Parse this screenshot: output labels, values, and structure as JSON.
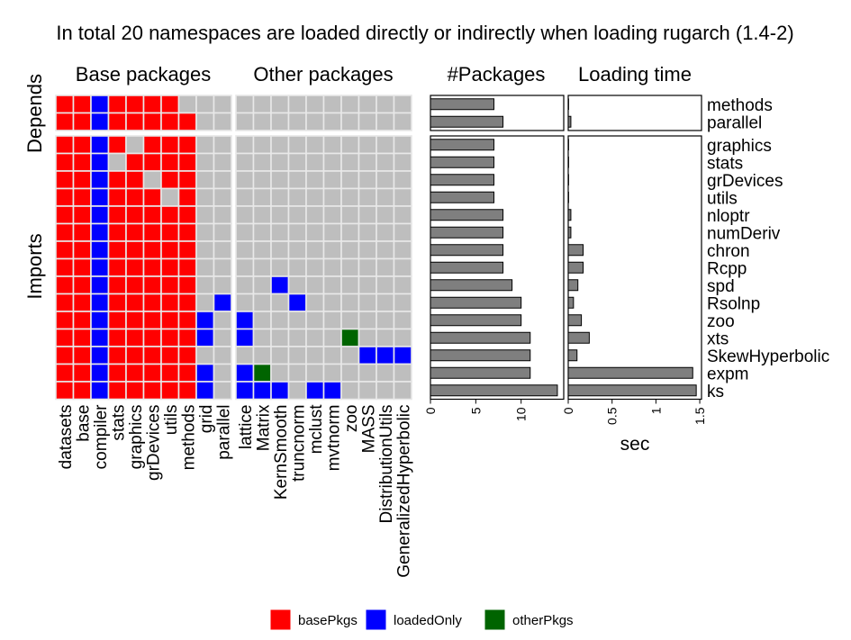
{
  "chart_data": {
    "type": "heatmap",
    "title": "In total 20 namespaces are loaded directly or indirectly when loading rugarch (1.4-2)",
    "panels": {
      "base_title": "Base packages",
      "other_title": "Other packages",
      "npkg_title": "#Packages",
      "time_title": "Loading time"
    },
    "group_labels": {
      "depends": "Depends",
      "imports": "Imports"
    },
    "base_columns": [
      "datasets",
      "base",
      "compiler",
      "stats",
      "graphics",
      "grDevices",
      "utils",
      "methods",
      "grid",
      "parallel"
    ],
    "other_columns": [
      "lattice",
      "Matrix",
      "KernSmooth",
      "truncnorm",
      "mclust",
      "mvtnorm",
      "zoo",
      "MASS",
      "DistributionUtils",
      "GeneralizedHyperbolic"
    ],
    "depends": {
      "rows": [
        "methods",
        "parallel"
      ],
      "base_matrix": [
        "rrbrrrr...",
        "rrbrrrrr.."
      ],
      "other_matrix": [
        "..........",
        ".........."
      ],
      "n_packages": [
        7,
        8
      ],
      "loading_time": [
        0.0,
        0.03
      ]
    },
    "imports": {
      "rows": [
        "graphics",
        "stats",
        "grDevices",
        "utils",
        "nloptr",
        "numDeriv",
        "chron",
        "Rcpp",
        "spd",
        "Rsolnp",
        "zoo",
        "xts",
        "SkewHyperbolic",
        "expm",
        "ks"
      ],
      "base_matrix": [
        "rrbr.rrr..",
        "rrb.rrrr..",
        "rrbrr.rr..",
        "rrbrrr.r..",
        "rrbrrrrr..",
        "rrbrrrrr..",
        "rrbrrrrr..",
        "rrbrrrrr..",
        "rrbrrrrr..",
        "rrbrrrrr.b",
        "rrbrrrrrb.",
        "rrbrrrrrb.",
        "rrbrrrrr..",
        "rrbrrrrrb.",
        "rrbrrrrrb."
      ],
      "other_matrix": [
        "..........",
        "..........",
        "..........",
        "..........",
        "..........",
        "..........",
        "..........",
        "..........",
        "..b.......",
        "...b......",
        "b.........",
        "b.....g...",
        ".......bbb",
        "bg........",
        "bbb.bb...."
      ],
      "n_packages": [
        7,
        7,
        7,
        7,
        8,
        8,
        8,
        8,
        9,
        10,
        10,
        11,
        11,
        11,
        14
      ],
      "loading_time": [
        0.0,
        0.0,
        0.0,
        0.0,
        0.03,
        0.03,
        0.17,
        0.17,
        0.11,
        0.06,
        0.15,
        0.24,
        0.1,
        1.42,
        1.46
      ]
    },
    "x_axis_npkg": {
      "ticks": [
        0,
        5,
        10
      ],
      "range": [
        0,
        14.7
      ]
    },
    "x_axis_time": {
      "ticks": [
        0,
        0.5,
        1,
        1.5
      ],
      "tick_labels": [
        "0",
        "0.5",
        "1",
        "1.5"
      ],
      "range": [
        0,
        1.52
      ],
      "label": "sec"
    },
    "legend": [
      {
        "key": "r",
        "label": "basePkgs",
        "color": "#ff0000"
      },
      {
        "key": "b",
        "label": "loadedOnly",
        "color": "#0000ff"
      },
      {
        "key": "g",
        "label": "otherPkgs",
        "color": "#006400"
      }
    ],
    "colors": {
      "empty": "#bebebe",
      "bar": "#7f7f7f",
      "grid": "#e8e8e8"
    }
  }
}
